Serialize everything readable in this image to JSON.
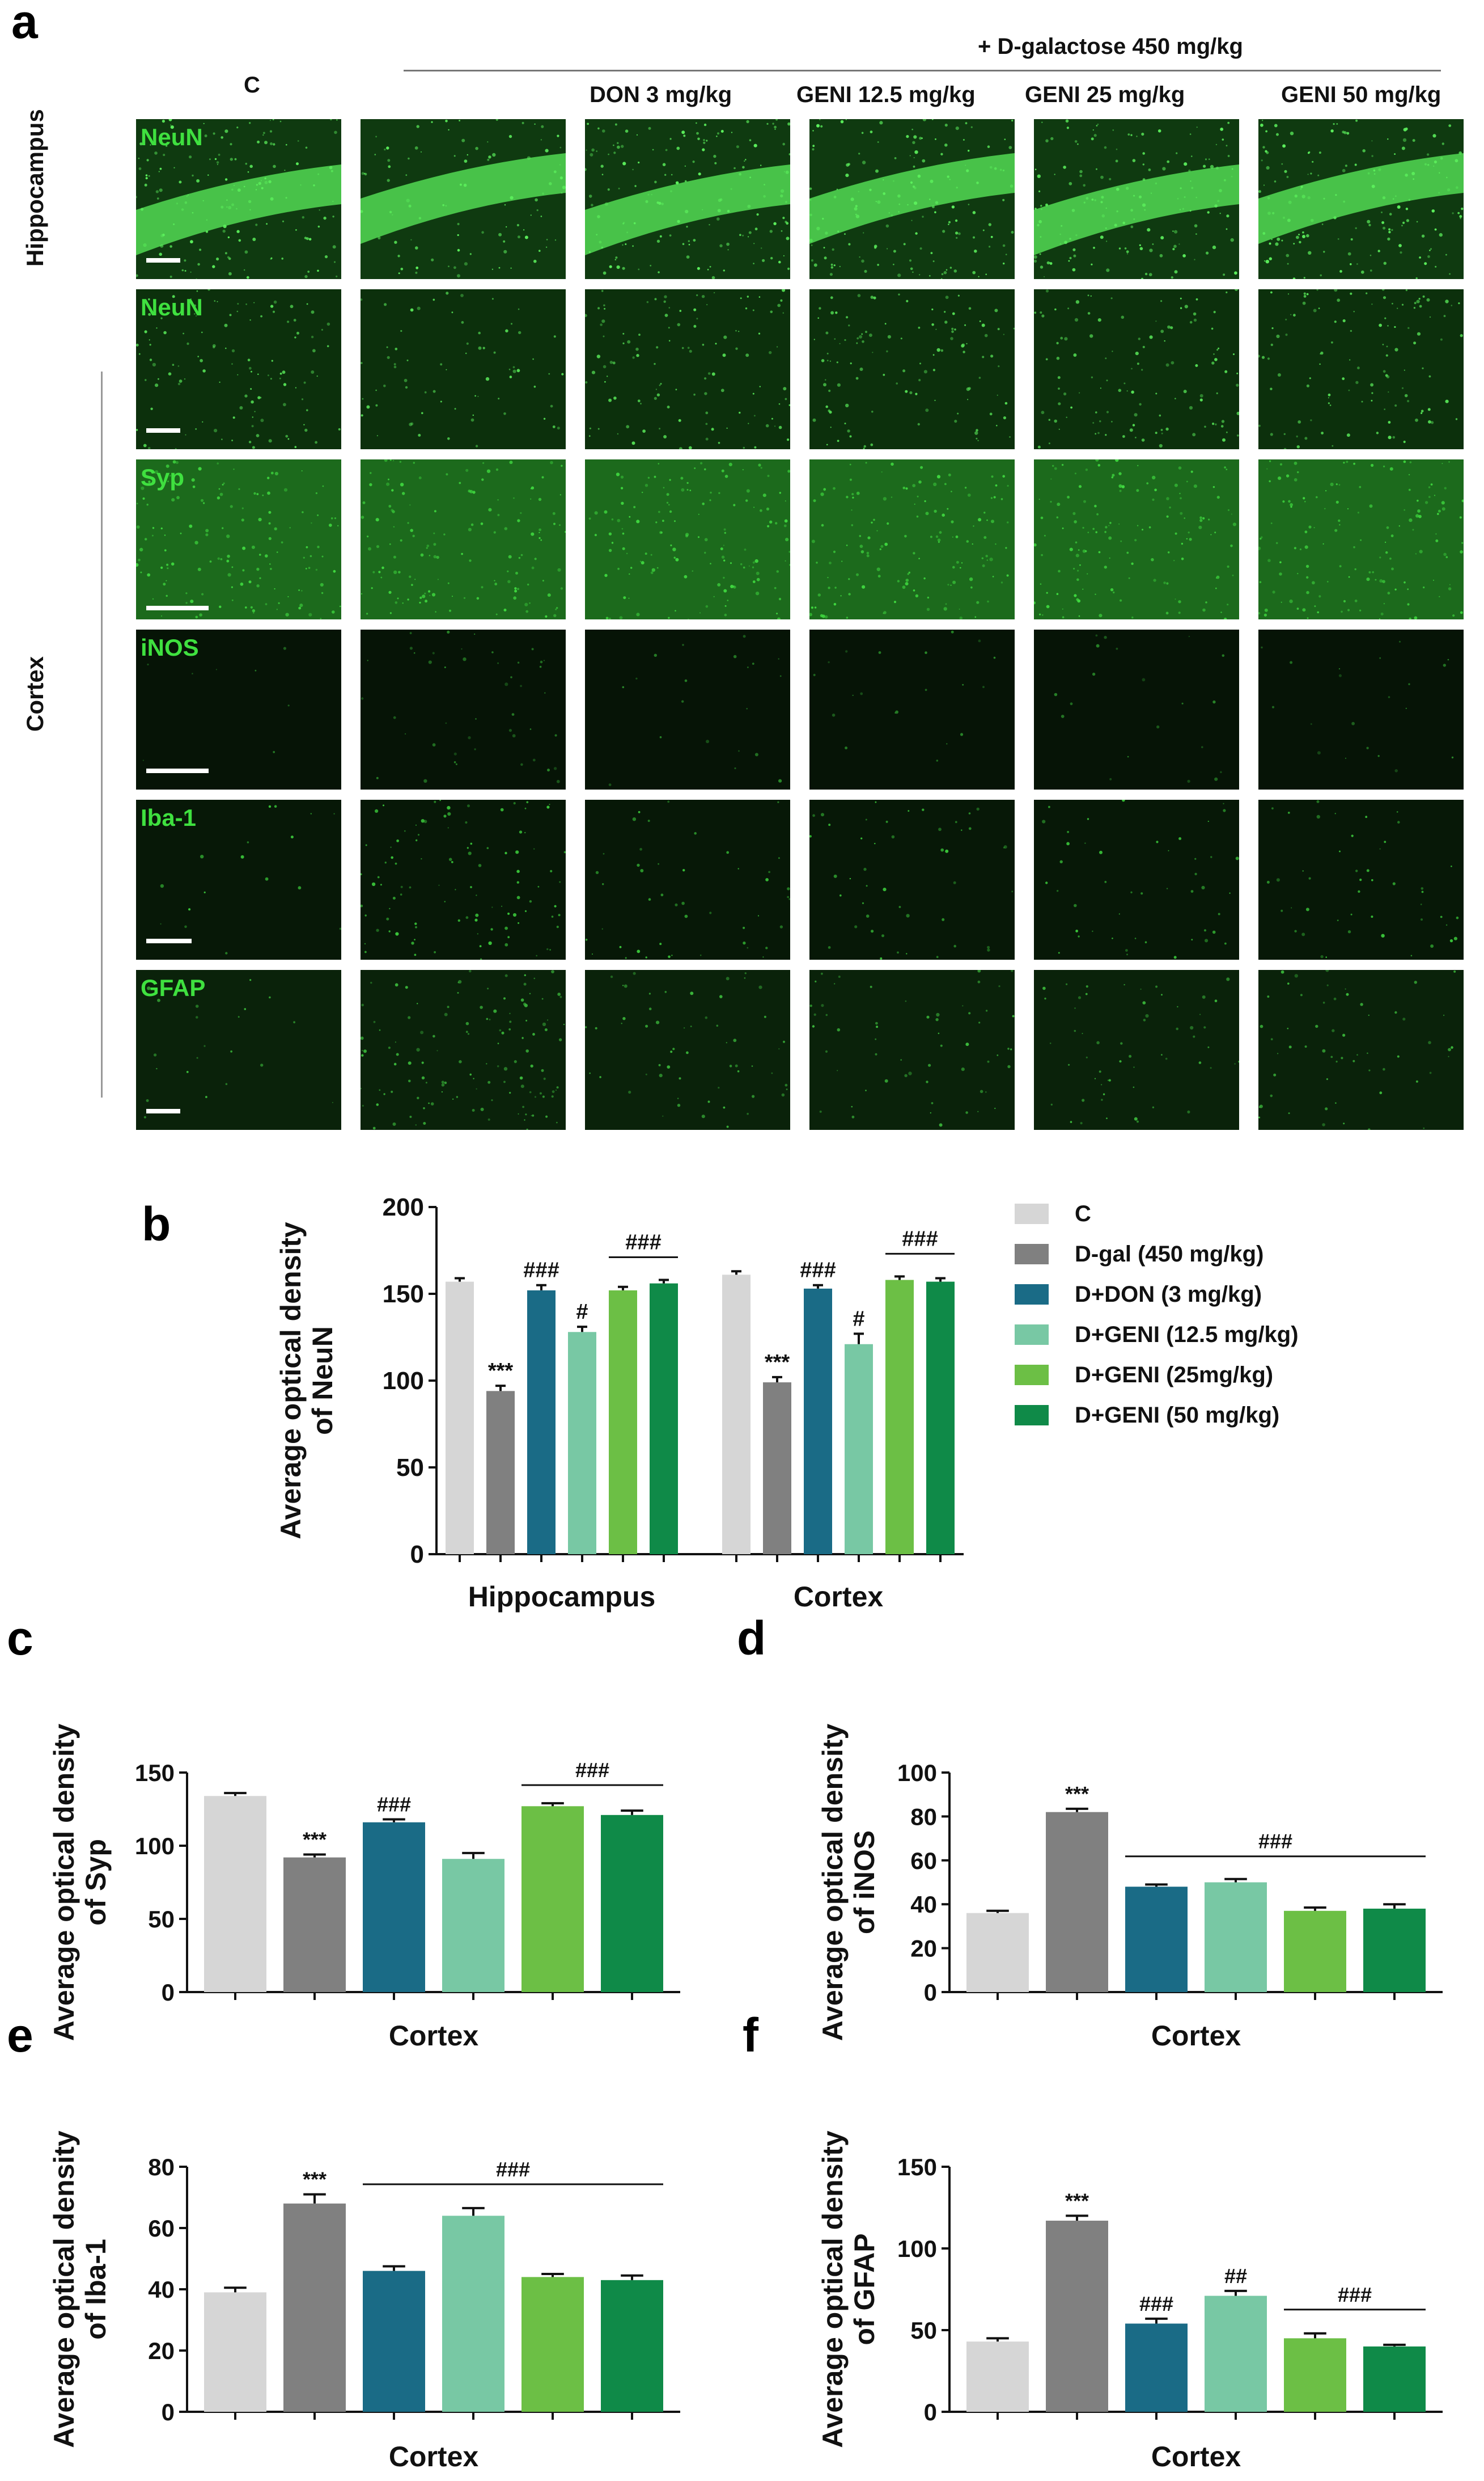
{
  "figure": {
    "panel_letters": [
      "a",
      "b",
      "c",
      "d",
      "e",
      "f"
    ],
    "treatment_header": "+ D-galactose 450 mg/kg",
    "columns": [
      "C",
      "",
      "DON 3 mg/kg",
      "GENI 12.5 mg/kg",
      "GENI 25 mg/kg",
      "GENI 50 mg/kg"
    ],
    "row_groups": [
      "Hippocampus",
      "Cortex"
    ],
    "rows": [
      {
        "marker": "NeuN",
        "base": "#0f3a10",
        "dot": "#5cf05c",
        "density": 0.62,
        "band": true
      },
      {
        "marker": "NeuN",
        "base": "#0c300c",
        "dot": "#55e055",
        "density": 0.45,
        "band": false
      },
      {
        "marker": "Syp",
        "base": "#1c6a1c",
        "dot": "#3fd83f",
        "density": 0.55,
        "band": false
      },
      {
        "marker": "iNOS",
        "base": "#061406",
        "dot": "#2a8a2a",
        "density": 0.08,
        "band": false
      },
      {
        "marker": "Iba-1",
        "base": "#071807",
        "dot": "#39c239",
        "density": 0.18,
        "band": false
      },
      {
        "marker": "GFAP",
        "base": "#0a220a",
        "dot": "#3bb83b",
        "density": 0.22,
        "band": false
      }
    ],
    "row_group_assignment": [
      "Hippocampus",
      "Cortex",
      "Cortex",
      "Cortex",
      "Cortex",
      "Cortex"
    ]
  },
  "legend": {
    "entries": [
      {
        "label": "C",
        "color": "#d6d6d6"
      },
      {
        "label": "D-gal (450 mg/kg)",
        "color": "#808080"
      },
      {
        "label": "D+DON (3 mg/kg)",
        "color": "#1a6b86"
      },
      {
        "label": "D+GENI (12.5 mg/kg)",
        "color": "#78c8a4"
      },
      {
        "label": "D+GENI (25mg/kg)",
        "color": "#6cbf45"
      },
      {
        "label": "D+GENI (50 mg/kg)",
        "color": "#0f8a48"
      }
    ]
  },
  "chart_data": [
    {
      "panel": "b",
      "type": "bar",
      "ylabel": "Average optical density of NeuN",
      "ylim": [
        0,
        200
      ],
      "yticks": [
        0,
        50,
        100,
        150,
        200
      ],
      "groups": [
        {
          "label": "Hippocampus",
          "values": [
            157,
            94,
            152,
            128,
            152,
            156
          ],
          "errors": [
            2,
            3,
            3,
            3,
            2,
            2
          ],
          "marks": [
            {
              "bar": 1,
              "text": "***"
            },
            {
              "bar": 2,
              "text": "###"
            },
            {
              "bar": 3,
              "text": "#"
            }
          ],
          "brackets": [
            {
              "from": 4,
              "to": 5,
              "text": "###"
            }
          ]
        },
        {
          "label": "Cortex",
          "values": [
            161,
            99,
            153,
            121,
            158,
            157
          ],
          "errors": [
            2,
            3,
            2,
            6,
            2,
            2
          ],
          "marks": [
            {
              "bar": 1,
              "text": "***"
            },
            {
              "bar": 2,
              "text": "###"
            },
            {
              "bar": 3,
              "text": "#"
            }
          ],
          "brackets": [
            {
              "from": 4,
              "to": 5,
              "text": "###"
            }
          ]
        }
      ]
    },
    {
      "panel": "c",
      "type": "bar",
      "xlabel": "Cortex",
      "ylabel": "Average optical density of Syp",
      "ylim": [
        0,
        150
      ],
      "yticks": [
        0,
        50,
        100,
        150
      ],
      "values": [
        134,
        92,
        116,
        91,
        127,
        121
      ],
      "errors": [
        2,
        2,
        2,
        4,
        2,
        3
      ],
      "marks": [
        {
          "bar": 1,
          "text": "***"
        },
        {
          "bar": 2,
          "text": "###"
        }
      ],
      "brackets": [
        {
          "from": 4,
          "to": 5,
          "text": "###"
        }
      ]
    },
    {
      "panel": "d",
      "type": "bar",
      "xlabel": "Cortex",
      "ylabel": "Average optical density of iNOS",
      "ylim": [
        0,
        100
      ],
      "yticks": [
        0,
        20,
        40,
        60,
        80,
        100
      ],
      "values": [
        36,
        82,
        48,
        50,
        37,
        38
      ],
      "errors": [
        1,
        1.5,
        1,
        1.5,
        1.5,
        2
      ],
      "marks": [
        {
          "bar": 1,
          "text": "***"
        }
      ],
      "brackets": [
        {
          "from": 2,
          "to": 5,
          "text": "###"
        }
      ]
    },
    {
      "panel": "e",
      "type": "bar",
      "xlabel": "Cortex",
      "ylabel": "Average optical density of Iba-1",
      "ylim": [
        0,
        80
      ],
      "yticks": [
        0,
        20,
        40,
        60,
        80
      ],
      "values": [
        39,
        68,
        46,
        64,
        44,
        43
      ],
      "errors": [
        1.5,
        3,
        1.5,
        2.5,
        1,
        1.5
      ],
      "marks": [
        {
          "bar": 1,
          "text": "***"
        }
      ],
      "brackets": [
        {
          "from": 2,
          "to": 5,
          "text": "###"
        }
      ]
    },
    {
      "panel": "f",
      "type": "bar",
      "xlabel": "Cortex",
      "ylabel": "Average optical density of GFAP",
      "ylim": [
        0,
        150
      ],
      "yticks": [
        0,
        50,
        100,
        150
      ],
      "values": [
        43,
        117,
        54,
        71,
        45,
        40
      ],
      "errors": [
        2,
        3,
        3,
        3,
        3,
        1
      ],
      "marks": [
        {
          "bar": 1,
          "text": "***"
        },
        {
          "bar": 2,
          "text": "###"
        },
        {
          "bar": 3,
          "text": "##"
        }
      ],
      "brackets": [
        {
          "from": 4,
          "to": 5,
          "text": "###"
        }
      ]
    }
  ]
}
